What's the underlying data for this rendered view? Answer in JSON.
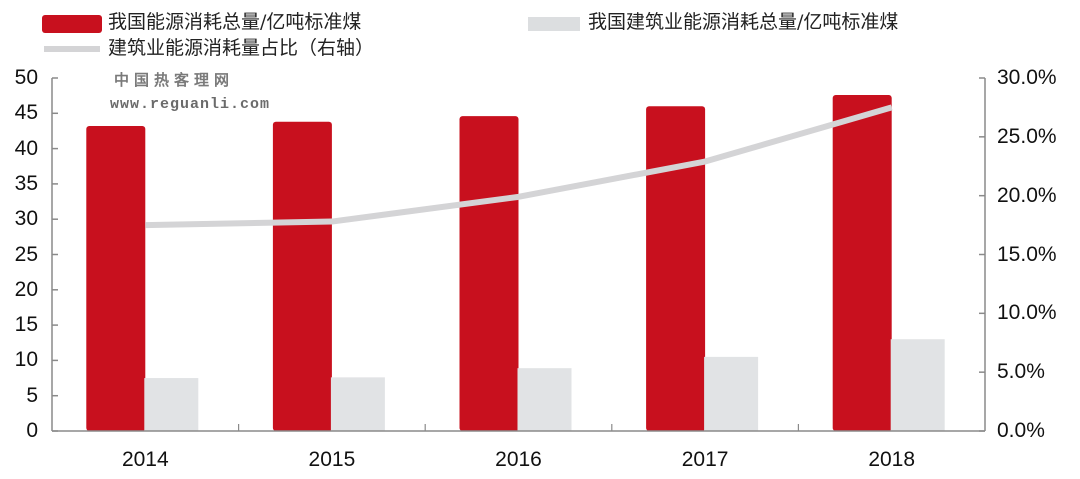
{
  "legend": {
    "series1": "我国能源消耗总量/亿吨标准煤",
    "series2": "我国建筑业能源消耗总量/亿吨标准煤",
    "series3": "建筑业能源消耗量占比（右轴）"
  },
  "watermark": {
    "name": "中国热客理网",
    "url": "www.reguanli.com"
  },
  "axes": {
    "left_ticks": [
      "0",
      "5",
      "10",
      "15",
      "20",
      "25",
      "30",
      "35",
      "40",
      "45",
      "50"
    ],
    "right_ticks": [
      "0.0%",
      "5.0%",
      "10.0%",
      "15.0%",
      "20.0%",
      "25.0%",
      "30.0%"
    ],
    "categories": [
      "2014",
      "2015",
      "2016",
      "2017",
      "2018"
    ]
  },
  "colors": {
    "series1": "#c8101e",
    "series2": "#e1e3e5",
    "series3": "#d4d4d6",
    "axis": "#8a8a8a"
  },
  "chart_data": {
    "type": "bar",
    "title": "",
    "categories": [
      "2014",
      "2015",
      "2016",
      "2017",
      "2018"
    ],
    "series": [
      {
        "name": "我国能源消耗总量/亿吨标准煤",
        "type": "bar",
        "axis": "left",
        "values": [
          43.2,
          43.8,
          44.6,
          46.0,
          47.6
        ]
      },
      {
        "name": "我国建筑业能源消耗总量/亿吨标准煤",
        "type": "bar",
        "axis": "left",
        "values": [
          7.5,
          7.6,
          8.9,
          10.5,
          13.0
        ]
      },
      {
        "name": "建筑业能源消耗量占比（右轴）",
        "type": "line",
        "axis": "right",
        "values": [
          17.5,
          17.8,
          19.9,
          22.9,
          27.5
        ],
        "unit": "%"
      }
    ],
    "xlabel": "",
    "ylabel": "",
    "ylim": [
      0,
      50
    ],
    "y2lim": [
      0,
      30
    ],
    "yticks": [
      0,
      5,
      10,
      15,
      20,
      25,
      30,
      35,
      40,
      45,
      50
    ],
    "y2ticks": [
      "0.0%",
      "5.0%",
      "10.0%",
      "15.0%",
      "20.0%",
      "25.0%",
      "30.0%"
    ],
    "grid": false,
    "legend_position": "top"
  }
}
